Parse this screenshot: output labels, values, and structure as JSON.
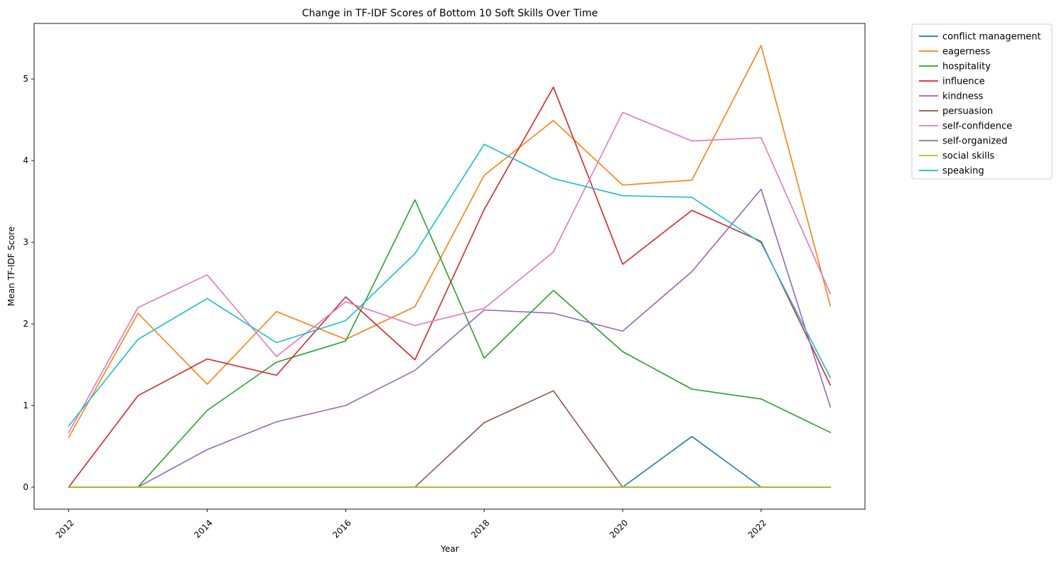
{
  "chart_data": {
    "type": "line",
    "title": "Change in TF-IDF Scores of Bottom 10 Soft Skills Over Time",
    "xlabel": "Year",
    "ylabel": "Mean TF-IDF Score",
    "xlim": [
      2011.5,
      2023.5
    ],
    "ylim": [
      -0.27,
      5.68
    ],
    "xticks": [
      2012,
      2014,
      2016,
      2018,
      2020,
      2022
    ],
    "yticks": [
      0,
      1,
      2,
      3,
      4,
      5
    ],
    "legend_position": "outside-top-right",
    "grid": false,
    "x": [
      2012,
      2013,
      2014,
      2015,
      2016,
      2017,
      2018,
      2019,
      2020,
      2021,
      2022,
      2023
    ],
    "series": [
      {
        "name": "conflict management",
        "color": "#1f77b4",
        "values": [
          0,
          0,
          0,
          0,
          0,
          0,
          0,
          0,
          0,
          0.62,
          0,
          0
        ]
      },
      {
        "name": "eagerness",
        "color": "#ff7f0e",
        "values": [
          0.61,
          2.13,
          1.26,
          2.15,
          1.81,
          2.21,
          3.82,
          4.49,
          3.7,
          3.76,
          5.41,
          2.22
        ]
      },
      {
        "name": "hospitality",
        "color": "#2ca02c",
        "values": [
          0,
          0,
          0.94,
          1.53,
          1.79,
          3.52,
          1.58,
          2.41,
          1.66,
          1.2,
          1.08,
          0.67
        ]
      },
      {
        "name": "influence",
        "color": "#d62728",
        "values": [
          0,
          1.12,
          1.57,
          1.37,
          2.33,
          1.56,
          3.4,
          4.9,
          2.73,
          3.39,
          3.01,
          1.25
        ]
      },
      {
        "name": "kindness",
        "color": "#9467bd",
        "values": [
          0,
          0,
          0.46,
          0.8,
          1.0,
          1.43,
          2.17,
          2.13,
          1.91,
          2.64,
          3.65,
          0.98
        ]
      },
      {
        "name": "persuasion",
        "color": "#8c564b",
        "values": [
          0,
          0,
          0,
          0,
          0,
          0,
          0.79,
          1.18,
          0,
          0,
          0,
          0
        ]
      },
      {
        "name": "self-confidence",
        "color": "#e377c2",
        "values": [
          0.67,
          2.2,
          2.6,
          1.6,
          2.27,
          1.98,
          2.19,
          2.88,
          4.59,
          4.24,
          4.28,
          2.37
        ]
      },
      {
        "name": "self-organized",
        "color": "#7f7f7f",
        "values": [
          0,
          0,
          0,
          0,
          0,
          0,
          0,
          0,
          0,
          0,
          0,
          0
        ]
      },
      {
        "name": "social skills",
        "color": "#bcbd22",
        "values": [
          0,
          0,
          0,
          0,
          0,
          0,
          0,
          0,
          0,
          0,
          0,
          0
        ]
      },
      {
        "name": "speaking",
        "color": "#17becf",
        "values": [
          0.75,
          1.81,
          2.31,
          1.77,
          2.04,
          2.86,
          4.2,
          3.78,
          3.57,
          3.55,
          2.99,
          1.34
        ]
      }
    ]
  }
}
